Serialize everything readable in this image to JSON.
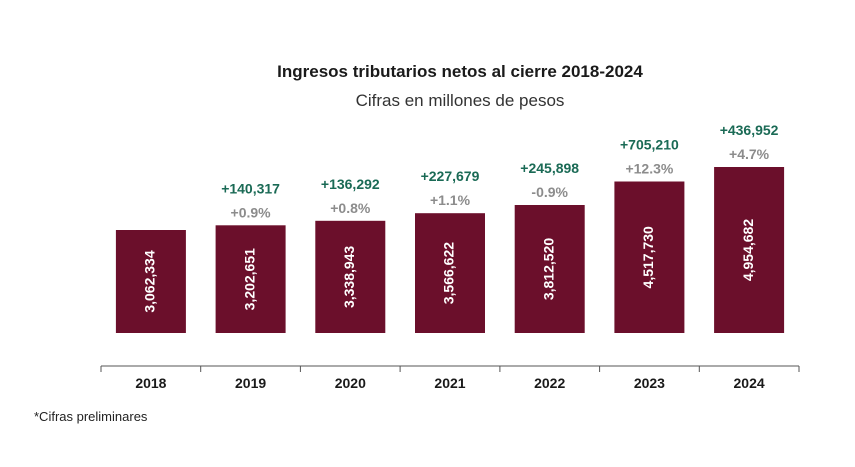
{
  "chart_data": {
    "type": "bar",
    "title": "Ingresos tributarios netos al cierre 2018-2024",
    "subtitle": "Cifras en millones de pesos",
    "categories": [
      "2018",
      "2019",
      "2020",
      "2021",
      "2022",
      "2023",
      "2024"
    ],
    "values": [
      3062334,
      3202651,
      3338943,
      3566622,
      3812520,
      4517730,
      4954682
    ],
    "value_labels": [
      "3,062,334",
      "3,202,651",
      "3,338,943",
      "3,566,622",
      "3,812,520",
      "4,517,730",
      "4,954,682"
    ],
    "change_labels": [
      "",
      "+140,317",
      "+136,292",
      "+227,679",
      "+245,898",
      "+705,210",
      "+436,952"
    ],
    "pct_labels": [
      "",
      "+0.9%",
      "+0.8%",
      "+1.1%",
      "-0.9%",
      "+12.3%",
      "+4.7%"
    ],
    "footnote": "*Cifras preliminares",
    "colors": {
      "bar": "#6b0f2b",
      "change": "#1a6a55",
      "pct": "#8c8c8c",
      "axis": "#555555"
    }
  }
}
